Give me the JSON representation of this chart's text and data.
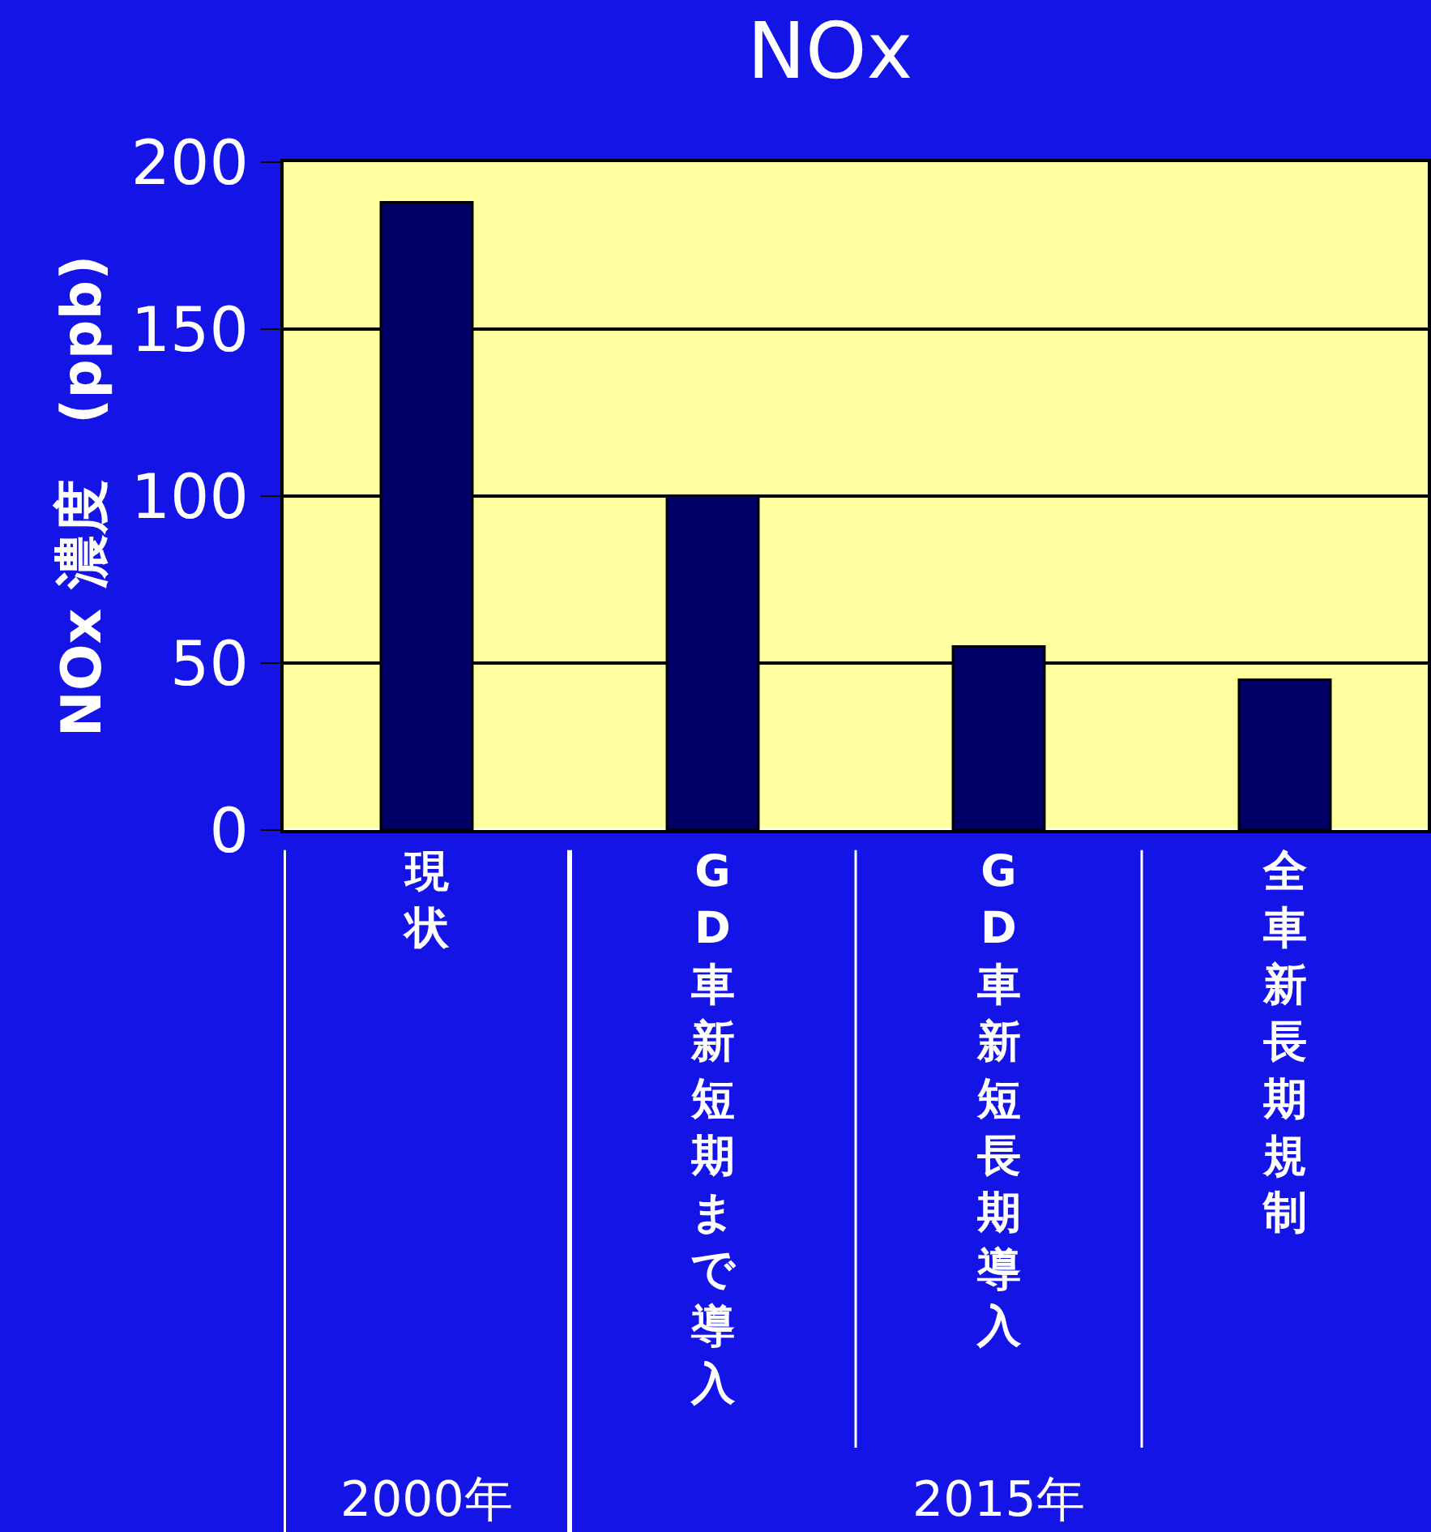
{
  "chart_data": {
    "type": "bar",
    "title": "NOx",
    "ylabel": "NOx 濃度　(ppb)",
    "categories": [
      "現状",
      "GD車新短期まで導入",
      "GD車新短長期導入",
      "全車新長期規制"
    ],
    "values": [
      188,
      100,
      55,
      45
    ],
    "color": "#000066",
    "ylim": [
      0,
      200
    ],
    "yticks": [
      0,
      50,
      100,
      150,
      200
    ],
    "grid": "y",
    "legend": false,
    "annotations": [
      "2000年",
      "2015年"
    ]
  }
}
